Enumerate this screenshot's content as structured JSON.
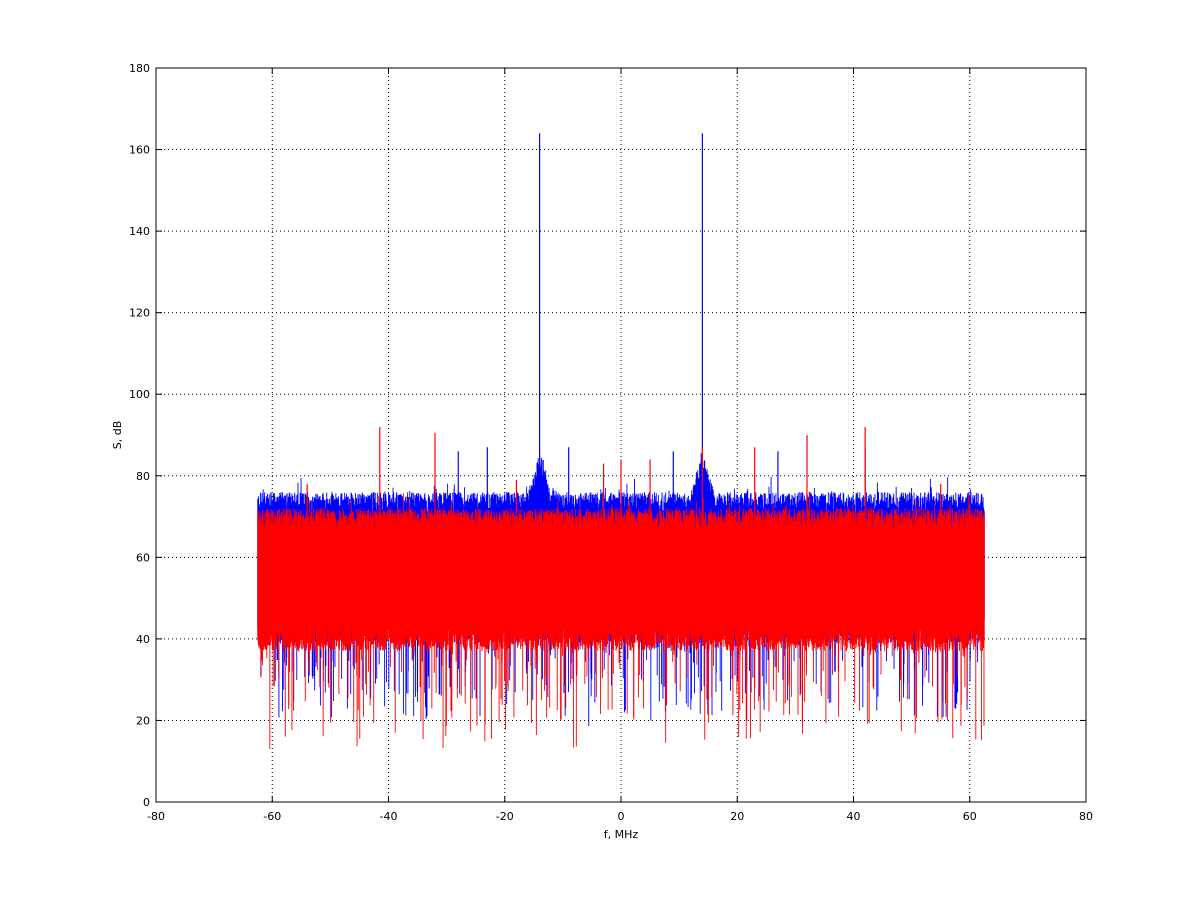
{
  "chart_data": {
    "type": "line",
    "title": "",
    "xlabel": "f, MHz",
    "ylabel": "S, dB",
    "xlim": [
      -80,
      80
    ],
    "ylim": [
      0,
      180
    ],
    "xticks": [
      -80,
      -60,
      -40,
      -20,
      0,
      20,
      40,
      60,
      80
    ],
    "yticks": [
      0,
      20,
      40,
      60,
      80,
      100,
      120,
      140,
      160,
      180
    ],
    "grid": true,
    "legend": "none",
    "x_range_of_data": [
      -62.5,
      62.5
    ],
    "series": [
      {
        "color": "#0000ff",
        "upper_envelope_db": 74,
        "lower_envelope_db": 42,
        "min_dip_db": 21,
        "peaks": [
          [
            -14,
            164
          ],
          [
            14,
            164
          ],
          [
            -14,
            85
          ],
          [
            14,
            85
          ],
          [
            -28,
            86
          ],
          [
            -23,
            87
          ],
          [
            -9,
            87
          ],
          [
            9,
            86
          ],
          [
            27,
            86
          ],
          [
            42,
            87
          ]
        ]
      },
      {
        "color": "#ff0000",
        "upper_envelope_db": 70,
        "lower_envelope_db": 40,
        "min_dip_db": 15,
        "peaks": [
          [
            -41.5,
            92
          ],
          [
            -32,
            90.5
          ],
          [
            42,
            92
          ],
          [
            32,
            90
          ],
          [
            23,
            87
          ],
          [
            -18,
            79
          ],
          [
            0,
            84
          ],
          [
            5,
            84
          ],
          [
            -3,
            83
          ],
          [
            14,
            87
          ],
          [
            55,
            78
          ],
          [
            -54,
            78
          ]
        ]
      }
    ]
  }
}
